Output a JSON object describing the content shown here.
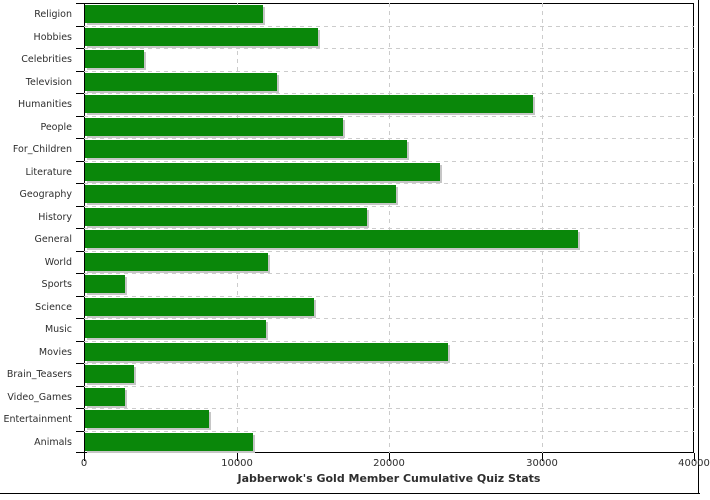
{
  "chart_data": {
    "type": "bar",
    "orientation": "horizontal",
    "title": "Jabberwok's Gold Member Cumulative Quiz Stats",
    "categories": [
      "Religion",
      "Hobbies",
      "Celebrities",
      "Television",
      "Humanities",
      "People",
      "For_Children",
      "Literature",
      "Geography",
      "History",
      "General",
      "World",
      "Sports",
      "Science",
      "Music",
      "Movies",
      "Brain_Teasers",
      "Video_Games",
      "Entertainment",
      "Animals"
    ],
    "values": [
      11700,
      15300,
      3900,
      12600,
      29400,
      16900,
      21100,
      23300,
      20400,
      18500,
      32300,
      12000,
      2600,
      15000,
      11900,
      23800,
      3200,
      2600,
      8100,
      11000
    ],
    "xlim": [
      0,
      40000
    ],
    "x_ticks": [
      0,
      10000,
      20000,
      30000,
      40000
    ],
    "grid": true,
    "legend": "none",
    "bar_color": "#0a870a",
    "shadow_color": "#c6c6c6",
    "grid_color": "#cccccc",
    "axis_color": "#000000",
    "text_color": "#2e2e2e"
  }
}
